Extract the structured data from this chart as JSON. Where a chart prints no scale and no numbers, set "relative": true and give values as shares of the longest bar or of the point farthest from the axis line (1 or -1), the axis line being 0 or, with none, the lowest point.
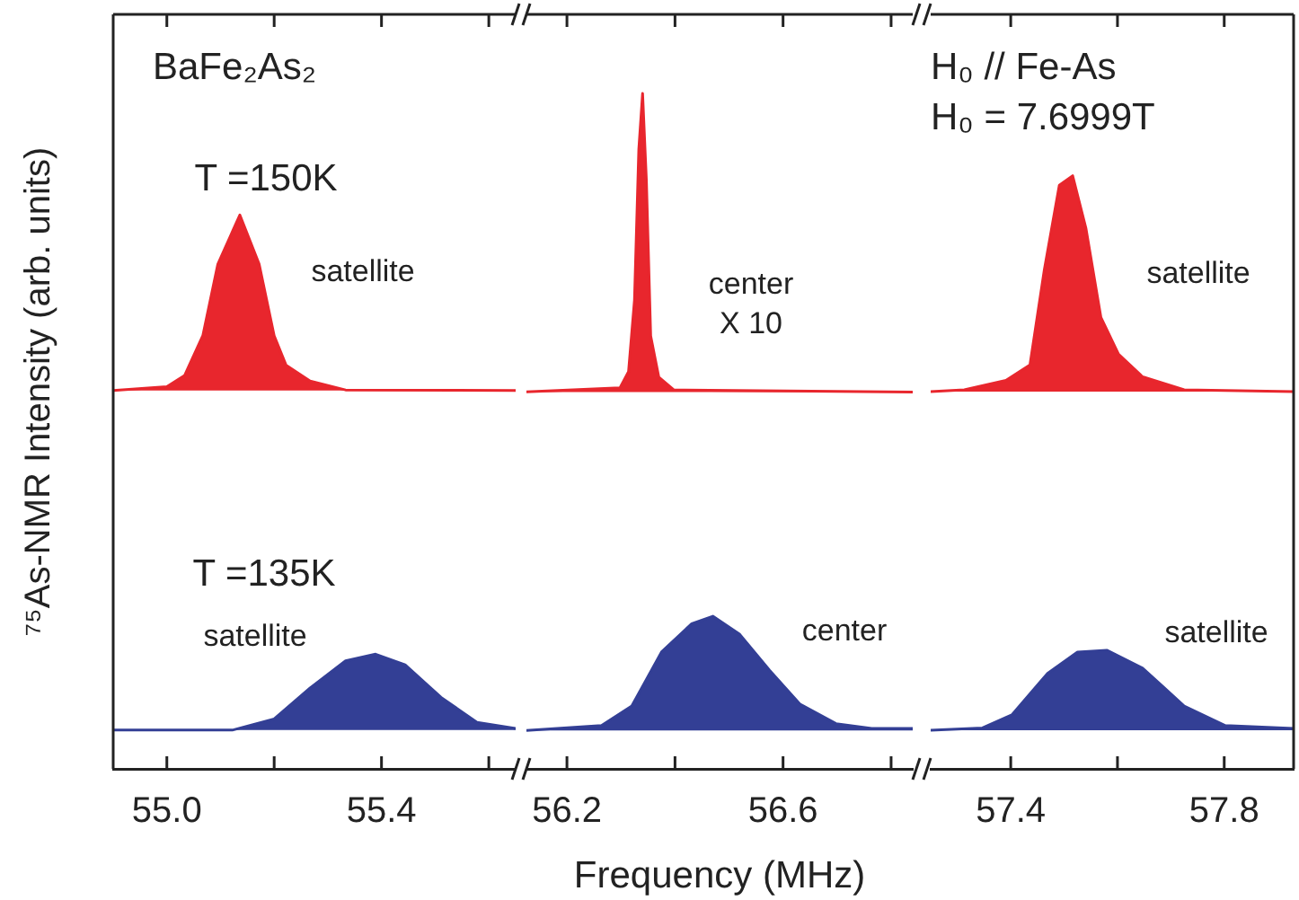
{
  "chart_data": [
    {
      "type": "area",
      "relative": true,
      "ylabel": "⁷⁵As-NMR Intensity (arb. units)",
      "xlim": [
        54.9,
        55.65
      ],
      "xticks": [
        {
          "value": 55,
          "label": "55.0"
        },
        {
          "value": 55.2,
          "label": null
        },
        55.4,
        {
          "value": 55.6,
          "label": null
        }
      ],
      "series": [
        {
          "color": "#e8262d",
          "x": [
            54.9,
            55.0,
            55.033,
            55.067,
            55.095,
            55.136,
            55.172,
            55.2,
            55.222,
            55.267,
            55.333,
            55.65
          ],
          "values": [
            0.683,
            0.69,
            0.71,
            0.782,
            0.911,
            1.0,
            0.911,
            0.782,
            0.729,
            0.7,
            0.684,
            0.683
          ]
        },
        {
          "color": "#333f95",
          "x": [
            54.9,
            55.122,
            55.2,
            55.267,
            55.333,
            55.389,
            55.444,
            55.511,
            55.578,
            55.65
          ],
          "values": [
            0.07,
            0.07,
            0.09,
            0.146,
            0.195,
            0.207,
            0.188,
            0.129,
            0.084,
            0.073
          ]
        }
      ],
      "annotations": [
        "BaFe₂As₂",
        "T =150K",
        "satellite",
        "T =135K",
        "satellite"
      ]
    },
    {
      "type": "area",
      "relative": true,
      "xlabel": "Frequency (MHz)",
      "xlim": [
        56.125,
        56.84
      ],
      "xticks": [
        56.2,
        {
          "value": 56.4,
          "label": null
        },
        56.6,
        {
          "value": 56.8,
          "label": null
        }
      ],
      "series": [
        {
          "color": "#e8262d",
          "x": [
            56.125,
            56.298,
            56.314,
            56.325,
            56.333,
            56.34,
            56.347,
            56.355,
            56.37,
            56.398,
            56.84
          ],
          "values": [
            0.558,
            0.564,
            0.588,
            0.694,
            0.917,
            1.0,
            0.872,
            0.641,
            0.58,
            0.561,
            0.558
          ]
        },
        {
          "color": "#333f95",
          "x": [
            56.125,
            56.264,
            56.32,
            56.375,
            56.431,
            56.47,
            56.52,
            56.575,
            56.631,
            56.698,
            56.764,
            56.84
          ],
          "values": [
            0.057,
            0.064,
            0.093,
            0.173,
            0.215,
            0.226,
            0.199,
            0.146,
            0.096,
            0.067,
            0.06,
            0.06
          ]
        }
      ],
      "annotations": [
        "center\nX 10",
        "center"
      ]
    },
    {
      "type": "area",
      "relative": true,
      "xlim": [
        57.25,
        57.93
      ],
      "xticks": [
        57.4,
        {
          "value": 57.6,
          "label": null
        },
        57.8
      ],
      "series": [
        {
          "color": "#e8262d",
          "x": [
            57.25,
            57.313,
            57.391,
            57.436,
            57.463,
            57.491,
            57.516,
            57.541,
            57.569,
            57.602,
            57.647,
            57.725,
            57.93
          ],
          "values": [
            0.636,
            0.639,
            0.655,
            0.681,
            0.842,
            0.984,
            1.0,
            0.911,
            0.761,
            0.699,
            0.661,
            0.639,
            0.636
          ]
        },
        {
          "color": "#333f95",
          "x": [
            57.25,
            57.347,
            57.402,
            57.469,
            57.525,
            57.58,
            57.647,
            57.725,
            57.802,
            57.93
          ],
          "values": [
            0.065,
            0.069,
            0.091,
            0.161,
            0.197,
            0.2,
            0.17,
            0.106,
            0.073,
            0.068
          ]
        }
      ],
      "annotations": [
        "H₀ // Fe-As",
        "H₀ = 7.6999T",
        "satellite",
        "satellite"
      ]
    }
  ]
}
